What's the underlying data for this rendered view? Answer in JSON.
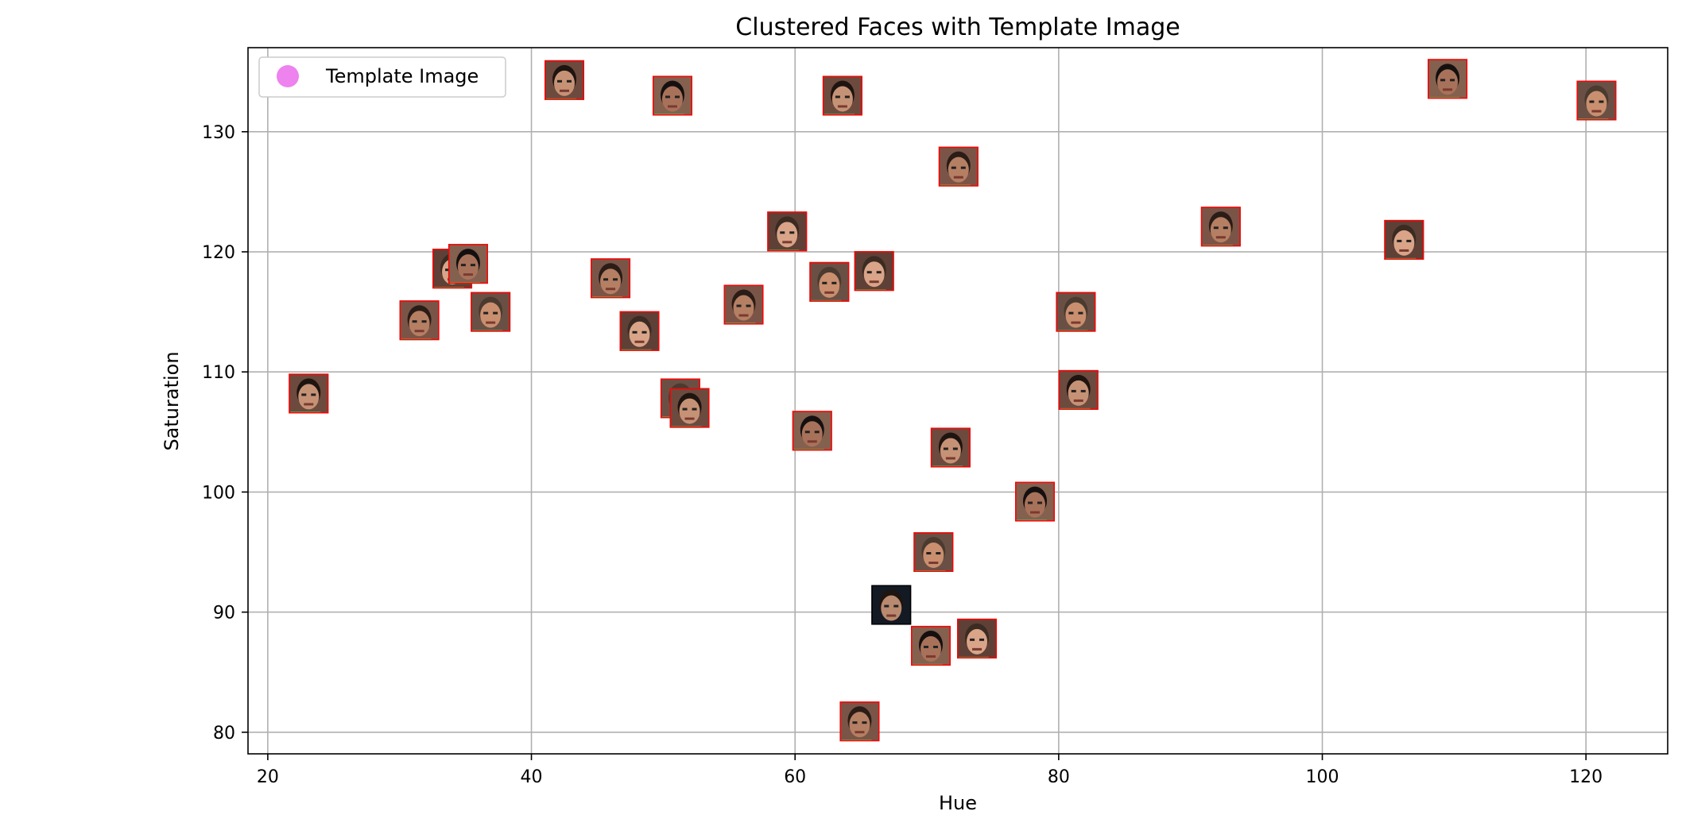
{
  "chart_data": {
    "type": "scatter",
    "title": "Clustered Faces with Template Image",
    "xlabel": "Hue",
    "ylabel": "Saturation",
    "xlim": [
      18.5,
      126.2
    ],
    "ylim": [
      78.2,
      137.0
    ],
    "xticks": [
      20,
      40,
      60,
      80,
      100,
      120
    ],
    "yticks": [
      80,
      90,
      100,
      110,
      120,
      130
    ],
    "grid": true,
    "legend": {
      "placement": "top-left",
      "entries": [
        {
          "label": "Template Image",
          "color": "#ee82ee",
          "marker": "circle"
        }
      ]
    },
    "colors": {
      "face_border": "#ff0000",
      "template_border": "#000000",
      "grid": "#b0b0b0",
      "axes": "#000000"
    },
    "faces": [
      {
        "x": 23.1,
        "y": 108.2
      },
      {
        "x": 31.5,
        "y": 114.3
      },
      {
        "x": 34.0,
        "y": 118.6
      },
      {
        "x": 35.2,
        "y": 119.0
      },
      {
        "x": 36.9,
        "y": 115.0
      },
      {
        "x": 42.5,
        "y": 134.3
      },
      {
        "x": 46.0,
        "y": 117.8
      },
      {
        "x": 48.2,
        "y": 113.4
      },
      {
        "x": 50.7,
        "y": 133.0
      },
      {
        "x": 51.3,
        "y": 107.8
      },
      {
        "x": 52.0,
        "y": 107.0
      },
      {
        "x": 56.1,
        "y": 115.6
      },
      {
        "x": 59.4,
        "y": 121.7
      },
      {
        "x": 61.3,
        "y": 105.1
      },
      {
        "x": 62.6,
        "y": 117.5
      },
      {
        "x": 63.6,
        "y": 133.0
      },
      {
        "x": 64.9,
        "y": 80.9
      },
      {
        "x": 66.0,
        "y": 118.4
      },
      {
        "x": 70.3,
        "y": 87.2
      },
      {
        "x": 70.5,
        "y": 95.0
      },
      {
        "x": 71.8,
        "y": 103.7
      },
      {
        "x": 72.4,
        "y": 127.1
      },
      {
        "x": 73.8,
        "y": 87.8
      },
      {
        "x": 78.2,
        "y": 99.2
      },
      {
        "x": 81.3,
        "y": 115.0
      },
      {
        "x": 81.5,
        "y": 108.5
      },
      {
        "x": 92.3,
        "y": 122.1
      },
      {
        "x": 106.2,
        "y": 121.0
      },
      {
        "x": 109.5,
        "y": 134.4
      },
      {
        "x": 120.8,
        "y": 132.6
      }
    ],
    "template_image": {
      "x": 67.3,
      "y": 90.6
    }
  }
}
